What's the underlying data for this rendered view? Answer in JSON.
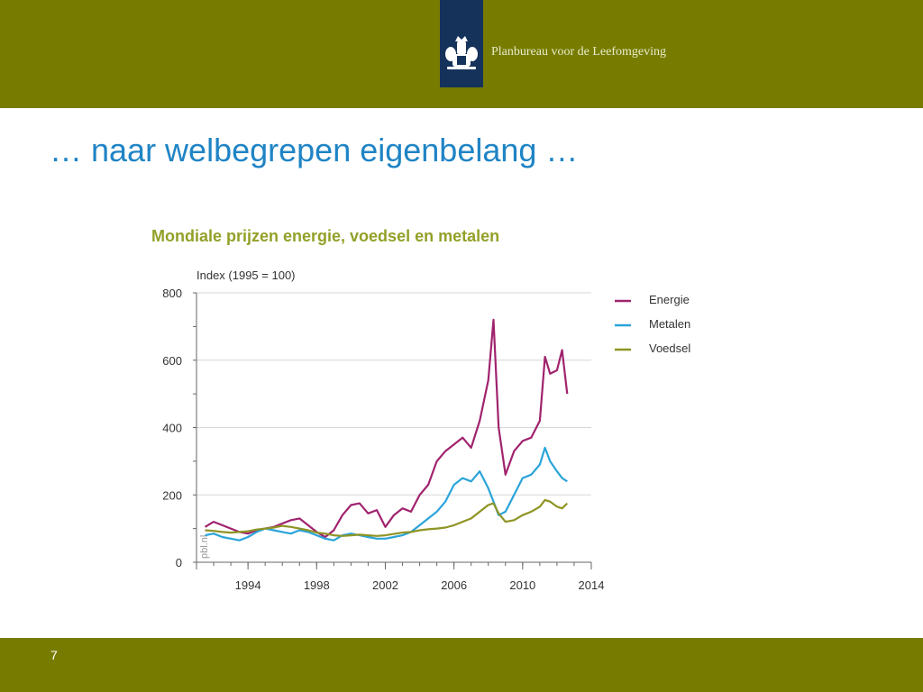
{
  "header": {
    "org_name": "Planbureau voor de Leefomgeving",
    "bar_color": "#777c00",
    "logo_color": "#15325a",
    "logo_icon": "coat-of-arms-icon"
  },
  "slide": {
    "title": "… naar welbegrepen eigenbelang …",
    "page_number": "7"
  },
  "chart_data": {
    "type": "line",
    "title": "Mondiale prijzen energie, voedsel en metalen",
    "ylabel": "Index (1995 = 100)",
    "xlabel": "",
    "source_note": "pbl.nl",
    "xlim": [
      1991,
      2014
    ],
    "ylim": [
      0,
      800
    ],
    "x_ticks": [
      1994,
      1998,
      2002,
      2006,
      2010,
      2014
    ],
    "y_ticks": [
      0,
      200,
      400,
      600,
      800
    ],
    "grid": "horizontal",
    "legend_position": "right",
    "series": [
      {
        "name": "Energie",
        "color": "#a0236e",
        "x": [
          1991.5,
          1992,
          1992.5,
          1993,
          1993.5,
          1994,
          1994.5,
          1995,
          1995.5,
          1996,
          1996.5,
          1997,
          1997.5,
          1998,
          1998.5,
          1999,
          1999.5,
          2000,
          2000.5,
          2001,
          2001.5,
          2002,
          2002.5,
          2003,
          2003.5,
          2004,
          2004.5,
          2005,
          2005.5,
          2006,
          2006.5,
          2007,
          2007.5,
          2008,
          2008.3,
          2008.6,
          2009,
          2009.5,
          2010,
          2010.5,
          2011,
          2011.3,
          2011.6,
          2012,
          2012.3,
          2012.6
        ],
        "y": [
          105,
          120,
          110,
          100,
          90,
          85,
          95,
          100,
          105,
          115,
          125,
          130,
          110,
          90,
          75,
          95,
          140,
          170,
          175,
          145,
          155,
          105,
          140,
          160,
          150,
          200,
          230,
          300,
          330,
          350,
          370,
          340,
          420,
          540,
          720,
          400,
          260,
          330,
          360,
          370,
          420,
          610,
          560,
          570,
          630,
          500
        ]
      },
      {
        "name": "Metalen",
        "color": "#2aa4d9",
        "x": [
          1991.5,
          1992,
          1992.5,
          1993,
          1993.5,
          1994,
          1994.5,
          1995,
          1995.5,
          1996,
          1996.5,
          1997,
          1997.5,
          1998,
          1998.5,
          1999,
          1999.5,
          2000,
          2000.5,
          2001,
          2001.5,
          2002,
          2002.5,
          2003,
          2003.5,
          2004,
          2004.5,
          2005,
          2005.5,
          2006,
          2006.5,
          2007,
          2007.5,
          2008,
          2008.3,
          2008.6,
          2009,
          2009.5,
          2010,
          2010.5,
          2011,
          2011.3,
          2011.6,
          2012,
          2012.3,
          2012.6
        ],
        "y": [
          80,
          85,
          75,
          70,
          65,
          75,
          90,
          100,
          95,
          90,
          85,
          95,
          90,
          80,
          70,
          65,
          80,
          85,
          80,
          75,
          70,
          70,
          75,
          80,
          90,
          110,
          130,
          150,
          180,
          230,
          250,
          240,
          270,
          220,
          180,
          140,
          150,
          200,
          250,
          260,
          290,
          340,
          300,
          270,
          250,
          240
        ]
      },
      {
        "name": "Voedsel",
        "color": "#8e9424",
        "x": [
          1991.5,
          1992,
          1992.5,
          1993,
          1993.5,
          1994,
          1994.5,
          1995,
          1995.5,
          1996,
          1996.5,
          1997,
          1997.5,
          1998,
          1998.5,
          1999,
          1999.5,
          2000,
          2000.5,
          2001,
          2001.5,
          2002,
          2002.5,
          2003,
          2003.5,
          2004,
          2004.5,
          2005,
          2005.5,
          2006,
          2006.5,
          2007,
          2007.5,
          2008,
          2008.3,
          2008.6,
          2009,
          2009.5,
          2010,
          2010.5,
          2011,
          2011.3,
          2011.6,
          2012,
          2012.3,
          2012.6
        ],
        "y": [
          95,
          93,
          90,
          88,
          90,
          92,
          97,
          100,
          103,
          108,
          105,
          100,
          95,
          88,
          85,
          80,
          78,
          80,
          82,
          80,
          78,
          80,
          84,
          88,
          90,
          95,
          98,
          100,
          103,
          110,
          120,
          130,
          150,
          170,
          175,
          145,
          120,
          125,
          140,
          150,
          165,
          185,
          180,
          165,
          160,
          175
        ]
      }
    ]
  }
}
